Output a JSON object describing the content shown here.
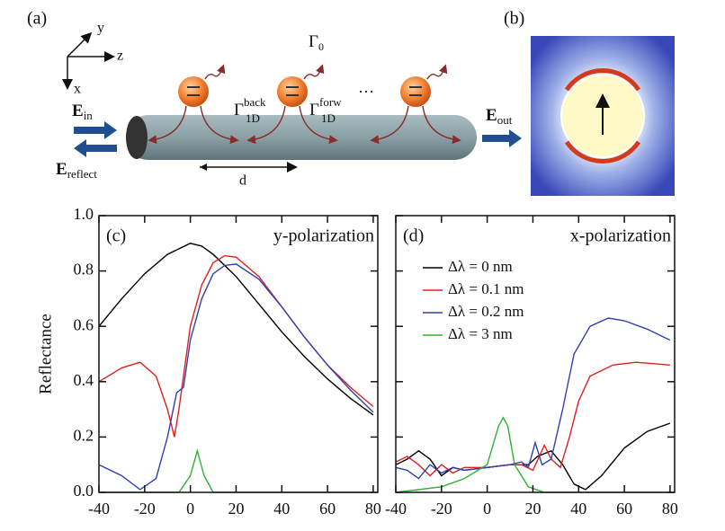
{
  "panel_a": {
    "label": "(a)",
    "axis_y": "y",
    "axis_z": "z",
    "axis_x": "x",
    "gamma0": {
      "symbol": "Γ",
      "sub": "0"
    },
    "gamma_back": {
      "symbol": "Γ",
      "sub": "1D",
      "sup": "back"
    },
    "gamma_forw": {
      "symbol": "Γ",
      "sub": "1D",
      "sup": "forw"
    },
    "ellipsis": "···",
    "e_in": {
      "symbol": "E",
      "sub": "in"
    },
    "e_reflect": {
      "symbol": "E",
      "sub": "reflect"
    },
    "e_out": {
      "symbol": "E",
      "sub": "out"
    },
    "spacing": "d"
  },
  "panel_b": {
    "label": "(b)"
  },
  "chart_data": [
    {
      "type": "line",
      "panel_label": "(c)",
      "title": "y-polarization",
      "y_label": "Reflectance",
      "xlim": [
        -40,
        82
      ],
      "ylim": [
        0,
        1
      ],
      "xticks": [
        -40,
        -20,
        0,
        20,
        40,
        60,
        80
      ],
      "yticks": [
        {
          "value": 0,
          "label": "0.0"
        },
        0.2,
        0.4,
        0.6,
        0.8,
        {
          "value": 1,
          "label": "1.0"
        }
      ],
      "show_ytick_labels": true,
      "series": [
        {
          "color": "#000000",
          "x": [
            -40,
            -30,
            -20,
            -10,
            0,
            5,
            10,
            20,
            30,
            40,
            50,
            60,
            70,
            80
          ],
          "values": [
            0.6,
            0.7,
            0.79,
            0.86,
            0.9,
            0.89,
            0.86,
            0.78,
            0.68,
            0.58,
            0.49,
            0.41,
            0.34,
            0.28
          ]
        },
        {
          "color": "#e02020",
          "x": [
            -40,
            -30,
            -22,
            -15,
            -10,
            -7,
            -5,
            0,
            5,
            10,
            15,
            20,
            30,
            40,
            50,
            60,
            70,
            80
          ],
          "values": [
            0.4,
            0.45,
            0.47,
            0.42,
            0.3,
            0.2,
            0.3,
            0.6,
            0.75,
            0.83,
            0.855,
            0.85,
            0.78,
            0.67,
            0.56,
            0.46,
            0.38,
            0.31
          ]
        },
        {
          "color": "#3040b0",
          "x": [
            -40,
            -30,
            -22,
            -15,
            -10,
            -6,
            -3,
            0,
            5,
            10,
            15,
            20,
            30,
            40,
            50,
            60,
            70,
            80
          ],
          "values": [
            0.1,
            0.06,
            0.01,
            0.05,
            0.2,
            0.36,
            0.38,
            0.55,
            0.7,
            0.79,
            0.82,
            0.825,
            0.77,
            0.67,
            0.56,
            0.46,
            0.37,
            0.29
          ]
        },
        {
          "color": "#30b030",
          "x": [
            -40,
            -5,
            0,
            3,
            6,
            10,
            80
          ],
          "values": [
            0,
            0,
            0.06,
            0.15,
            0.06,
            0,
            0
          ]
        }
      ]
    },
    {
      "type": "line",
      "panel_label": "(d)",
      "title": "x-polarization",
      "xlim": [
        -40,
        82
      ],
      "ylim": [
        0,
        1
      ],
      "xticks": [
        -40,
        -20,
        0,
        20,
        40,
        60,
        80
      ],
      "yticks": [
        0,
        0.2,
        0.4,
        0.6,
        0.8,
        1
      ],
      "show_ytick_labels": false,
      "legend": "upper left",
      "series": [
        {
          "name": "Δλ = 0 nm",
          "color": "#000000",
          "x": [
            -40,
            -35,
            -30,
            -25,
            -20,
            -15,
            -10,
            0,
            10,
            18,
            22,
            28,
            33,
            38,
            43,
            50,
            60,
            70,
            80
          ],
          "values": [
            0.1,
            0.12,
            0.15,
            0.12,
            0.06,
            0.09,
            0.08,
            0.09,
            0.1,
            0.1,
            0.13,
            0.15,
            0.1,
            0.03,
            0.01,
            0.06,
            0.16,
            0.22,
            0.25
          ]
        },
        {
          "name": "Δλ = 0.1 nm",
          "color": "#e02020",
          "x": [
            -40,
            -35,
            -30,
            -25,
            -20,
            -15,
            -10,
            0,
            10,
            15,
            20,
            25,
            28,
            32,
            36,
            40,
            45,
            55,
            65,
            80
          ],
          "values": [
            0.11,
            0.13,
            0.1,
            0.06,
            0.1,
            0.07,
            0.09,
            0.09,
            0.1,
            0.1,
            0.08,
            0.17,
            0.12,
            0.09,
            0.2,
            0.33,
            0.42,
            0.46,
            0.47,
            0.46
          ]
        },
        {
          "name": "Δλ = 0.2 nm",
          "color": "#3040b0",
          "x": [
            -40,
            -35,
            -30,
            -25,
            -20,
            -15,
            -10,
            0,
            10,
            15,
            18,
            21,
            24,
            28,
            33,
            38,
            45,
            53,
            60,
            70,
            80
          ],
          "values": [
            0.09,
            0.08,
            0.05,
            0.1,
            0.07,
            0.09,
            0.08,
            0.09,
            0.1,
            0.11,
            0.09,
            0.18,
            0.1,
            0.12,
            0.3,
            0.5,
            0.6,
            0.63,
            0.62,
            0.59,
            0.55
          ]
        },
        {
          "name": "Δλ = 3 nm",
          "color": "#30b030",
          "x": [
            -40,
            -20,
            -10,
            0,
            5,
            7,
            9,
            12,
            18,
            25,
            80
          ],
          "values": [
            0,
            0.02,
            0.05,
            0.1,
            0.24,
            0.27,
            0.24,
            0.1,
            0.02,
            0,
            0
          ]
        }
      ]
    }
  ]
}
